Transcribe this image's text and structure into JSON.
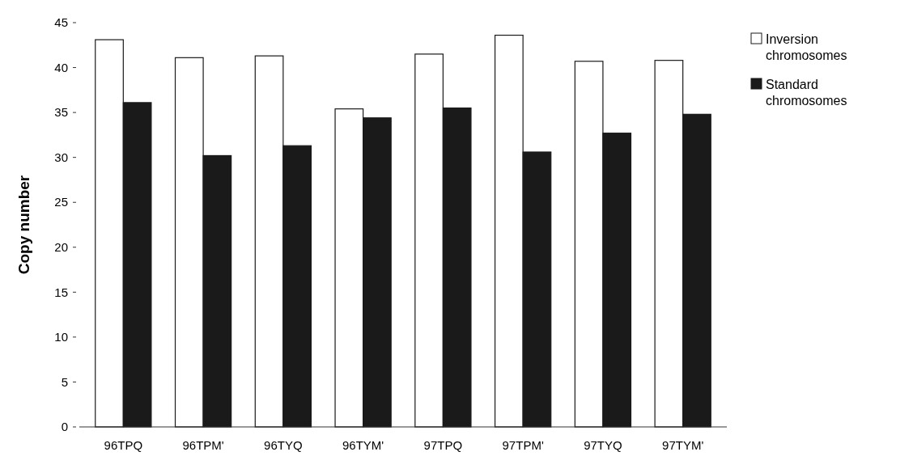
{
  "chart_data": {
    "type": "bar",
    "ylabel": "Copy number",
    "categories": [
      "96TPQ",
      "96TPM'",
      "96TYQ",
      "96TYM'",
      "97TPQ",
      "97TPM'",
      "97TYQ",
      "97TYM'"
    ],
    "series": [
      {
        "name": "Inversion chromosomes",
        "color": "#ffffff",
        "values": [
          43.1,
          41.1,
          41.3,
          35.4,
          41.5,
          43.6,
          40.7,
          40.8
        ]
      },
      {
        "name": "Standard chromosomes",
        "color": "#1a1a1a",
        "values": [
          36.1,
          30.2,
          31.3,
          34.4,
          35.5,
          30.6,
          32.7,
          34.8
        ]
      }
    ],
    "ylim": [
      0,
      45
    ],
    "yticks": [
      0,
      5,
      10,
      15,
      20,
      25,
      30,
      35,
      40,
      45
    ],
    "grid": false,
    "legend": "top right"
  }
}
